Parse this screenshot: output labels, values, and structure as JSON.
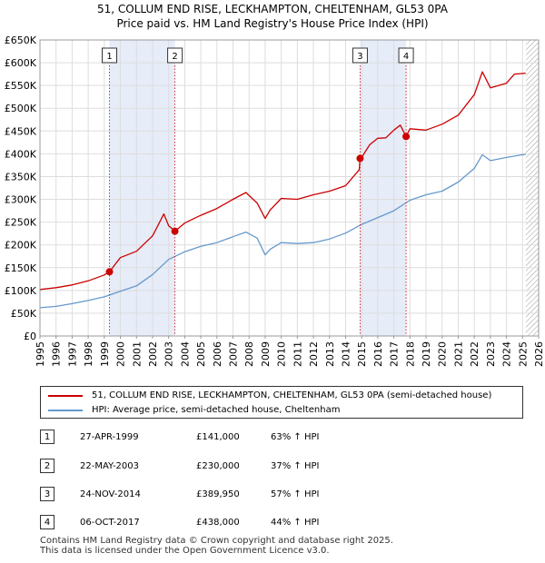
{
  "chart_data": {
    "type": "line",
    "title": [
      "51, COLLUM END RISE, LECKHAMPTON, CHELTENHAM, GL53 0PA",
      "Price paid vs. HM Land Registry's House Price Index (HPI)"
    ],
    "xlabel": "",
    "ylabel": "",
    "xlim": [
      1995,
      2026
    ],
    "ylim": [
      0,
      650000
    ],
    "x_ticks": [
      "1995",
      "1996",
      "1997",
      "1998",
      "1999",
      "2000",
      "2001",
      "2002",
      "2003",
      "2004",
      "2005",
      "2006",
      "2007",
      "2008",
      "2009",
      "2010",
      "2011",
      "2012",
      "2013",
      "2014",
      "2015",
      "2016",
      "2017",
      "2018",
      "2019",
      "2020",
      "2021",
      "2022",
      "2023",
      "2024",
      "2025",
      "2026"
    ],
    "y_ticks": [
      {
        "value": 0,
        "label": "£0"
      },
      {
        "value": 50000,
        "label": "£50K"
      },
      {
        "value": 100000,
        "label": "£100K"
      },
      {
        "value": 150000,
        "label": "£150K"
      },
      {
        "value": 200000,
        "label": "£200K"
      },
      {
        "value": 250000,
        "label": "£250K"
      },
      {
        "value": 300000,
        "label": "£300K"
      },
      {
        "value": 350000,
        "label": "£350K"
      },
      {
        "value": 400000,
        "label": "£400K"
      },
      {
        "value": 450000,
        "label": "£450K"
      },
      {
        "value": 500000,
        "label": "£500K"
      },
      {
        "value": 550000,
        "label": "£550K"
      },
      {
        "value": 600000,
        "label": "£600K"
      },
      {
        "value": 650000,
        "label": "£650K"
      }
    ],
    "grid": true,
    "shaded_ranges": [
      [
        1999.32,
        2003.39
      ],
      [
        2014.9,
        2017.76
      ]
    ],
    "hatched_from": 2025.2,
    "series": [
      {
        "name": "51, COLLUM END RISE, LECKHAMPTON, CHELTENHAM, GL53 0PA (semi-detached house)",
        "color": "#cc0000",
        "x": [
          1995.0,
          1996.0,
          1997.0,
          1998.0,
          1999.0,
          1999.32,
          2000.0,
          2001.0,
          2002.0,
          2002.7,
          2003.0,
          2003.39,
          2004.0,
          2005.0,
          2006.0,
          2007.0,
          2007.8,
          2008.5,
          2009.0,
          2009.3,
          2010.0,
          2011.0,
          2012.0,
          2013.0,
          2014.0,
          2014.85,
          2014.9,
          2015.0,
          2015.5,
          2016.0,
          2016.5,
          2017.0,
          2017.4,
          2017.76,
          2018.0,
          2019.0,
          2020.0,
          2021.0,
          2022.0,
          2022.5,
          2023.0,
          2024.0,
          2024.5,
          2025.2
        ],
        "values": [
          102000,
          106000,
          112000,
          121000,
          134000,
          141000,
          172000,
          186000,
          220000,
          268000,
          242000,
          230000,
          248000,
          265000,
          280000,
          300000,
          315000,
          292000,
          258000,
          276000,
          302000,
          300000,
          310000,
          318000,
          330000,
          365000,
          389950,
          392000,
          420000,
          434000,
          435000,
          452000,
          463000,
          438000,
          455000,
          452000,
          465000,
          485000,
          530000,
          580000,
          545000,
          555000,
          575000,
          577000
        ]
      },
      {
        "name": "HPI: Average price, semi-detached house, Cheltenham",
        "color": "#6699cc",
        "x": [
          1995.0,
          1996.0,
          1997.0,
          1998.0,
          1999.0,
          2000.0,
          2001.0,
          2002.0,
          2003.0,
          2004.0,
          2005.0,
          2006.0,
          2007.0,
          2007.8,
          2008.5,
          2009.0,
          2009.3,
          2010.0,
          2011.0,
          2012.0,
          2013.0,
          2014.0,
          2015.0,
          2016.0,
          2017.0,
          2018.0,
          2019.0,
          2020.0,
          2021.0,
          2022.0,
          2022.5,
          2023.0,
          2024.0,
          2025.0,
          2025.2
        ],
        "values": [
          62000,
          65000,
          71000,
          78000,
          86000,
          98000,
          110000,
          135000,
          168000,
          185000,
          197000,
          205000,
          218000,
          228000,
          215000,
          178000,
          190000,
          205000,
          203000,
          205000,
          213000,
          226000,
          245000,
          260000,
          275000,
          298000,
          310000,
          318000,
          338000,
          368000,
          398000,
          385000,
          392000,
          398000,
          399000
        ]
      }
    ],
    "sales": [
      {
        "x": 1999.32,
        "value": 141000
      },
      {
        "x": 2003.39,
        "value": 230000
      },
      {
        "x": 2014.9,
        "value": 389950
      },
      {
        "x": 2017.76,
        "value": 438000
      }
    ]
  },
  "markers": [
    "1",
    "2",
    "3",
    "4"
  ],
  "legend": {
    "property_label": "51, COLLUM END RISE, LECKHAMPTON, CHELTENHAM, GL53 0PA (semi-detached house)",
    "hpi_label": "HPI: Average price, semi-detached house, Cheltenham"
  },
  "sales_table": [
    {
      "num": "1",
      "date": "27-APR-1999",
      "price": "£141,000",
      "hpi": "63% ↑ HPI"
    },
    {
      "num": "2",
      "date": "22-MAY-2003",
      "price": "£230,000",
      "hpi": "37% ↑ HPI"
    },
    {
      "num": "3",
      "date": "24-NOV-2014",
      "price": "£389,950",
      "hpi": "57% ↑ HPI"
    },
    {
      "num": "4",
      "date": "06-OCT-2017",
      "price": "£438,000",
      "hpi": "44% ↑ HPI"
    }
  ],
  "footer": {
    "line1": "Contains HM Land Registry data © Crown copyright and database right 2025.",
    "line2": "This data is licensed under the Open Government Licence v3.0."
  }
}
